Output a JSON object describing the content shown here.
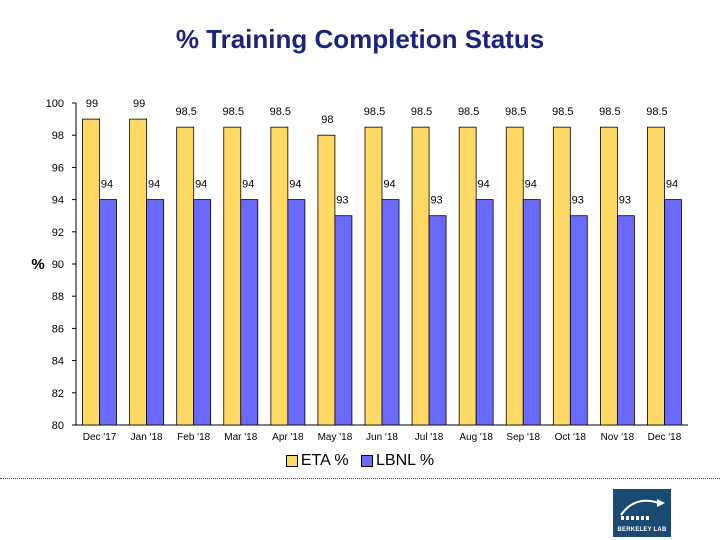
{
  "chart_data": {
    "type": "bar",
    "title": "% Training Completion Status",
    "ylabel": "%",
    "xlabel": "",
    "ylim": [
      80,
      100
    ],
    "yticks": [
      80,
      82,
      84,
      86,
      88,
      90,
      92,
      94,
      96,
      98,
      100
    ],
    "grid": false,
    "legend": "bottom",
    "categories": [
      "Dec '17",
      "Jan '18",
      "Feb '18",
      "Mar '18",
      "Apr '18",
      "May '18",
      "Jun '18",
      "Jul '18",
      "Aug '18",
      "Sep '18",
      "Oct '18",
      "Nov '18",
      "Dec '18"
    ],
    "series": [
      {
        "name": "ETA %",
        "color": "#ffd966",
        "values": [
          99,
          99,
          98.5,
          98.5,
          98.5,
          98,
          98.5,
          98.5,
          98.5,
          98.5,
          98.5,
          98.5,
          98.5
        ]
      },
      {
        "name": "LBNL %",
        "color": "#6a6aff",
        "values": [
          94,
          94,
          94,
          94,
          94,
          93,
          94,
          93,
          94,
          94,
          93,
          93,
          94
        ]
      }
    ]
  },
  "logo": {
    "text": "BERKELEY LAB"
  }
}
